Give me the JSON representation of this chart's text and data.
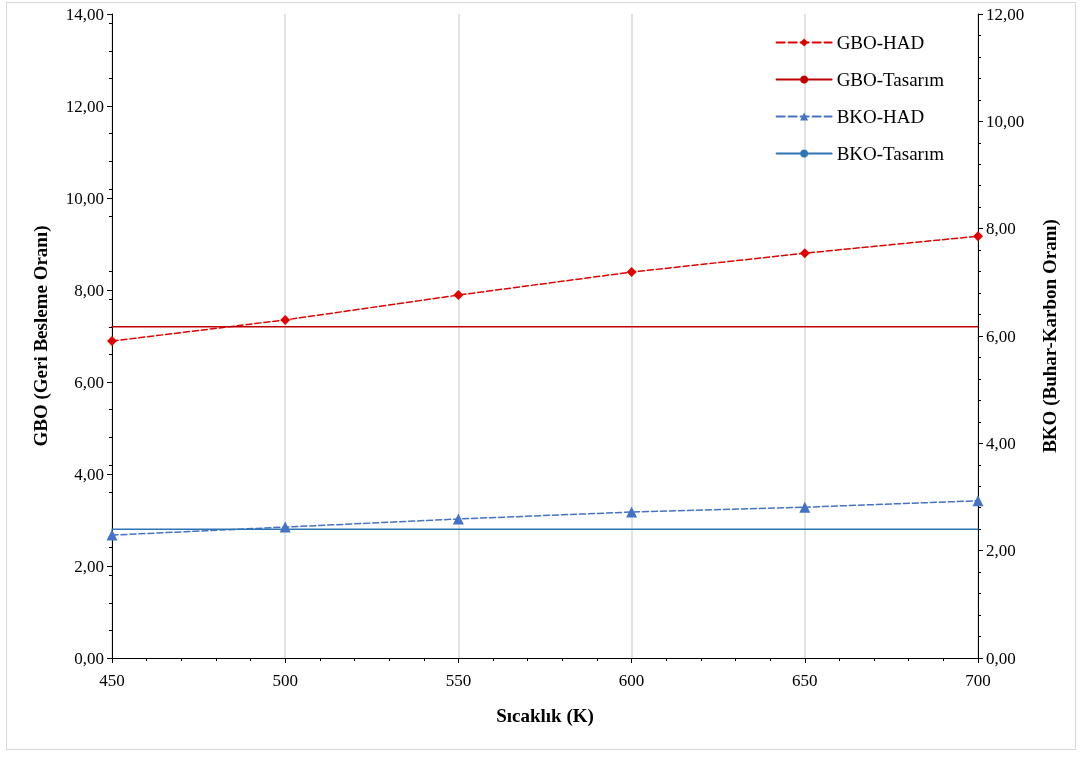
{
  "chart_data": {
    "type": "line",
    "xlabel": "Sıcaklık (K)",
    "ylabel": "GBO (Geri Besleme Oranı)",
    "y2label": "BKO (Buhar-Karbon Oranı)",
    "x": [
      450,
      500,
      550,
      600,
      650,
      700
    ],
    "xlim": [
      450,
      700
    ],
    "xticks": [
      450,
      500,
      550,
      600,
      650,
      700
    ],
    "ylim": [
      0,
      14
    ],
    "yticks": [
      {
        "value": 0,
        "label": "0,00"
      },
      {
        "value": 2,
        "label": "2,00"
      },
      {
        "value": 4,
        "label": "4,00"
      },
      {
        "value": 6,
        "label": "6,00"
      },
      {
        "value": 8,
        "label": "8,00"
      },
      {
        "value": 10,
        "label": "10,00"
      },
      {
        "value": 12,
        "label": "12,00"
      },
      {
        "value": 14,
        "label": "14,00"
      }
    ],
    "y2lim": [
      0,
      12
    ],
    "y2ticks": [
      {
        "value": 0,
        "label": "0,00"
      },
      {
        "value": 2,
        "label": "2,00"
      },
      {
        "value": 4,
        "label": "4,00"
      },
      {
        "value": 6,
        "label": "6,00"
      },
      {
        "value": 8,
        "label": "8,00"
      },
      {
        "value": 10,
        "label": "10,00"
      },
      {
        "value": 12,
        "label": "12,00"
      }
    ],
    "grid": "x",
    "legend": "top right",
    "series": [
      {
        "name": "GBO-HAD",
        "color": "#e00000",
        "marker": "diamond",
        "line_style": "dashed",
        "values": [
          6.89,
          7.35,
          7.89,
          8.39,
          8.8,
          9.17
        ]
      },
      {
        "name": "GBO-Tasarım",
        "color": "#c00000",
        "marker": "none",
        "line_style": "solid",
        "values": [
          7.2,
          7.2,
          7.2,
          7.2,
          7.2,
          7.2
        ]
      },
      {
        "name": "BKO-HAD",
        "color": "#4472c4",
        "marker": "triangle",
        "line_style": "dashed",
        "axis": "y2",
        "values": [
          2.29,
          2.44,
          2.59,
          2.72,
          2.81,
          2.93
        ]
      },
      {
        "name": "BKO-Tasarım",
        "color": "#2e75b6",
        "marker": "none",
        "line_style": "solid",
        "axis": "y2",
        "values": [
          2.4,
          2.4,
          2.4,
          2.4,
          2.4,
          2.4
        ]
      }
    ]
  }
}
